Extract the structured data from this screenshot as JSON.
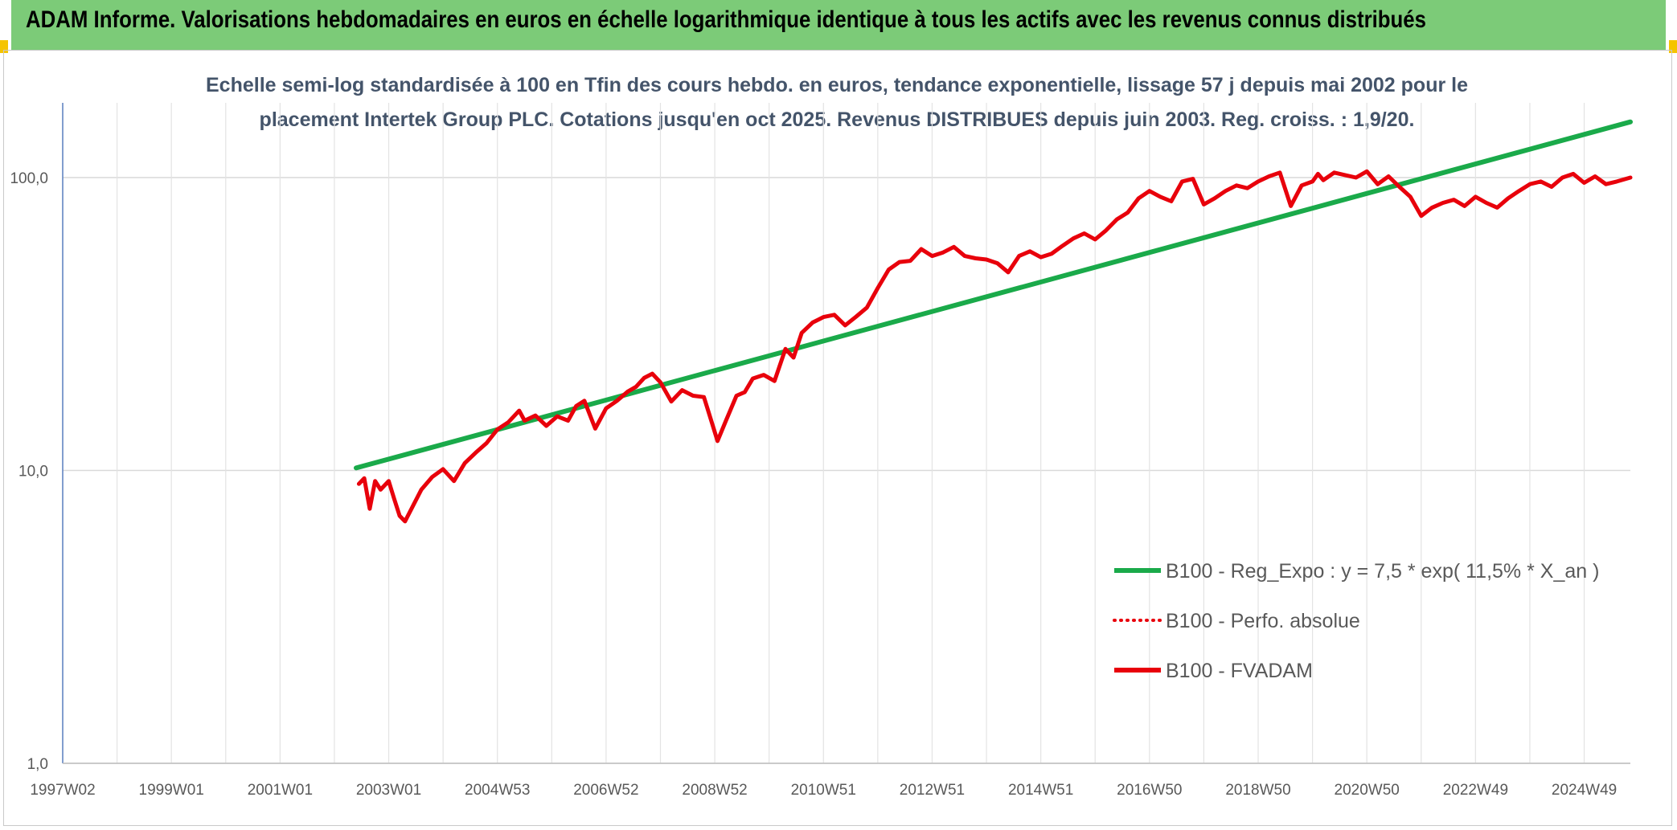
{
  "header": {
    "title": "ADAM Informe. Valorisations hebdomadaires en euros en échelle logarithmique identique à tous les actifs avec les revenus connus distribués"
  },
  "colors": {
    "banner": "#7ccb78",
    "accent_corner": "#f5c400",
    "fvadam": "#e8000b",
    "perfo": "#e8000b",
    "regression": "#1aaa4a",
    "grid": "#d9d9d9",
    "axis": "#5b7fbf"
  },
  "chart_data": {
    "type": "line",
    "title_lines": [
      "Echelle semi-log standardisée à 100 en Tfin des cours hebdo. en euros, tendance exponentielle, lissage 57 j depuis mai 2002 pour le",
      "placement Intertek Group PLC. Cotations jusqu'en oct 2025. Revenus DISTRIBUES depuis juin 2003. Reg. croiss. : 1,9/20."
    ],
    "y_scale": "log",
    "ylim": [
      1,
      180
    ],
    "y_ticks": [
      {
        "value": 1,
        "label": "1,0"
      },
      {
        "value": 10,
        "label": "10,0"
      },
      {
        "value": 100,
        "label": "100,0"
      }
    ],
    "xlim": [
      1997.0,
      2025.85
    ],
    "x_ticks": [
      {
        "value": 1997.0,
        "label": "1997W02"
      },
      {
        "value": 1999.0,
        "label": "1999W01"
      },
      {
        "value": 2001.0,
        "label": "2001W01"
      },
      {
        "value": 2003.0,
        "label": "2003W01"
      },
      {
        "value": 2005.0,
        "label": "2004W53"
      },
      {
        "value": 2007.0,
        "label": "2006W52"
      },
      {
        "value": 2009.0,
        "label": "2008W52"
      },
      {
        "value": 2011.0,
        "label": "2010W51"
      },
      {
        "value": 2013.0,
        "label": "2012W51"
      },
      {
        "value": 2015.0,
        "label": "2014W51"
      },
      {
        "value": 2017.0,
        "label": "2016W50"
      },
      {
        "value": 2019.0,
        "label": "2018W50"
      },
      {
        "value": 2021.0,
        "label": "2020W50"
      },
      {
        "value": 2023.0,
        "label": "2022W49"
      },
      {
        "value": 2025.0,
        "label": "2024W49"
      }
    ],
    "grid": true,
    "legend_position": "bottom-right",
    "series": [
      {
        "name": "B100 - Reg_Expo : y = 7,5 * exp( 11,5% *  X_an )",
        "style": "solid-thick",
        "x": [
          2002.4,
          2025.85
        ],
        "y": [
          10.2,
          155
        ]
      },
      {
        "name": "B100 - Perfo. absolue",
        "style": "dotted",
        "x": [],
        "y": []
      },
      {
        "name": "B100 - FVADAM",
        "style": "solid",
        "x": [
          2002.45,
          2002.55,
          2002.65,
          2002.75,
          2002.85,
          2003.0,
          2003.1,
          2003.2,
          2003.3,
          2003.45,
          2003.6,
          2003.8,
          2004.0,
          2004.2,
          2004.4,
          2004.6,
          2004.8,
          2005.0,
          2005.2,
          2005.4,
          2005.5,
          2005.7,
          2005.9,
          2006.1,
          2006.3,
          2006.45,
          2006.6,
          2006.8,
          2007.0,
          2007.2,
          2007.4,
          2007.55,
          2007.7,
          2007.85,
          2008.0,
          2008.2,
          2008.4,
          2008.6,
          2008.8,
          2008.95,
          2009.05,
          2009.2,
          2009.4,
          2009.55,
          2009.7,
          2009.9,
          2010.1,
          2010.3,
          2010.45,
          2010.6,
          2010.8,
          2011.0,
          2011.2,
          2011.4,
          2011.6,
          2011.8,
          2012.0,
          2012.2,
          2012.4,
          2012.6,
          2012.8,
          2013.0,
          2013.2,
          2013.4,
          2013.6,
          2013.8,
          2014.0,
          2014.2,
          2014.4,
          2014.6,
          2014.8,
          2015.0,
          2015.2,
          2015.4,
          2015.6,
          2015.8,
          2016.0,
          2016.2,
          2016.4,
          2016.6,
          2016.8,
          2017.0,
          2017.2,
          2017.4,
          2017.6,
          2017.8,
          2018.0,
          2018.2,
          2018.4,
          2018.6,
          2018.8,
          2019.0,
          2019.2,
          2019.4,
          2019.6,
          2019.8,
          2020.0,
          2020.1,
          2020.2,
          2020.4,
          2020.6,
          2020.8,
          2021.0,
          2021.2,
          2021.4,
          2021.6,
          2021.8,
          2022.0,
          2022.2,
          2022.4,
          2022.6,
          2022.8,
          2023.0,
          2023.2,
          2023.4,
          2023.6,
          2023.8,
          2024.0,
          2024.2,
          2024.4,
          2024.6,
          2024.8,
          2025.0,
          2025.2,
          2025.4,
          2025.6,
          2025.85
        ],
        "y": [
          9.0,
          9.4,
          7.4,
          9.2,
          8.6,
          9.2,
          8.0,
          7.0,
          6.7,
          7.6,
          8.6,
          9.5,
          10.1,
          9.2,
          10.6,
          11.5,
          12.4,
          13.8,
          14.6,
          16.0,
          14.8,
          15.4,
          14.2,
          15.3,
          14.8,
          16.6,
          17.3,
          13.9,
          16.3,
          17.3,
          18.6,
          19.3,
          20.7,
          21.4,
          20.0,
          17.2,
          18.8,
          18.0,
          17.8,
          14.5,
          12.6,
          14.7,
          18.0,
          18.5,
          20.6,
          21.2,
          20.2,
          26.0,
          24.3,
          29.5,
          32.0,
          33.4,
          34.0,
          31.3,
          33.5,
          36.0,
          42.0,
          48.5,
          51.5,
          52.0,
          57.0,
          54.0,
          55.5,
          58.0,
          54.0,
          53.0,
          52.5,
          51.0,
          47.5,
          54.0,
          56.0,
          53.5,
          55.0,
          58.5,
          62.0,
          64.5,
          61.5,
          66.0,
          72.0,
          76.0,
          85.0,
          90.0,
          86.0,
          83.0,
          97.0,
          99.0,
          81.0,
          85.0,
          90.0,
          94.0,
          92.0,
          97.0,
          101.0,
          104.0,
          80.0,
          94.0,
          97.0,
          103.0,
          98.0,
          104.0,
          102.0,
          100.0,
          105.0,
          95.0,
          101.0,
          93.0,
          86.0,
          74.0,
          79.0,
          82.0,
          84.0,
          80.0,
          86.0,
          82.0,
          79.0,
          85.0,
          90.0,
          95.0,
          97.0,
          93.0,
          100.0,
          103.0,
          96.0,
          101.0,
          95.0,
          97.0,
          100.0
        ]
      }
    ]
  }
}
